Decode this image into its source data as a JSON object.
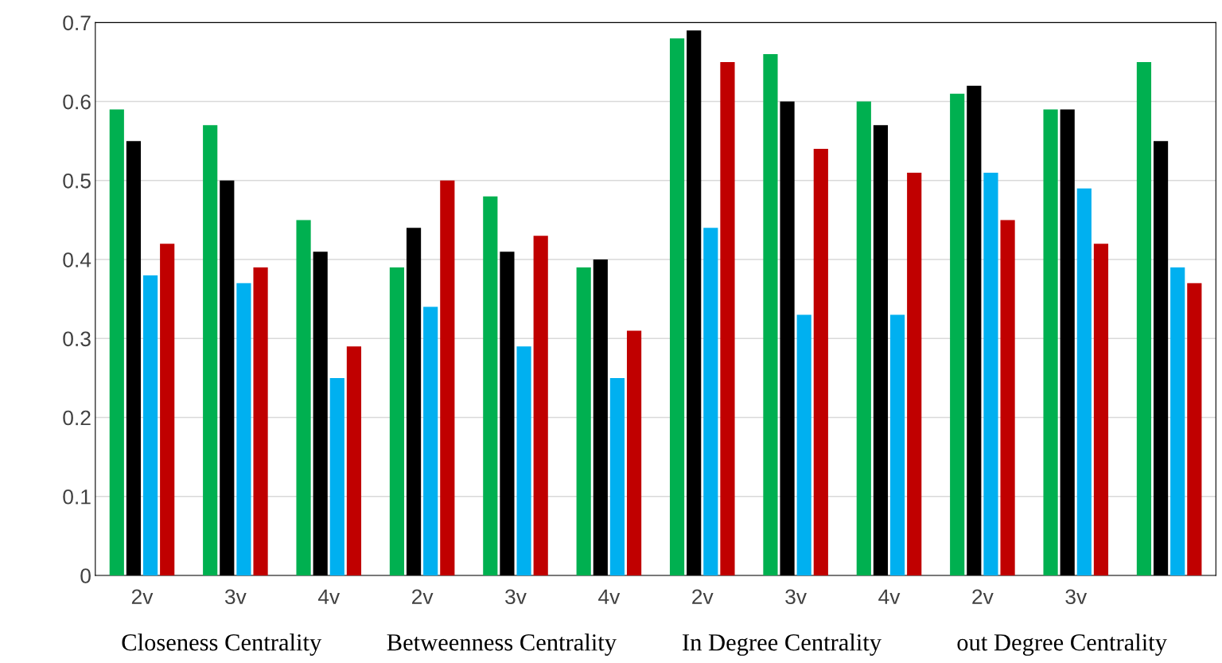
{
  "chart_data": {
    "type": "bar",
    "categories": [
      "2v",
      "3v",
      "4v",
      "2v",
      "3v",
      "4v",
      "2v",
      "3v",
      "4v",
      "2v",
      "3v",
      null
    ],
    "series": [
      {
        "color": "#00b050",
        "values": [
          0.59,
          0.57,
          0.45,
          0.39,
          0.48,
          0.39,
          0.68,
          0.66,
          0.6,
          0.61,
          0.59,
          0.65
        ]
      },
      {
        "color": "#000000",
        "values": [
          0.55,
          0.5,
          0.41,
          0.44,
          0.41,
          0.4,
          0.69,
          0.6,
          0.57,
          0.62,
          0.59,
          0.55
        ]
      },
      {
        "color": "#00b0f0",
        "values": [
          0.38,
          0.37,
          0.25,
          0.34,
          0.29,
          0.25,
          0.44,
          0.33,
          0.33,
          0.51,
          0.49,
          0.39
        ]
      },
      {
        "color": "#c00000",
        "values": [
          0.42,
          0.39,
          0.29,
          0.5,
          0.43,
          0.31,
          0.65,
          0.54,
          0.51,
          0.45,
          0.42,
          0.37
        ]
      }
    ],
    "annotations": [
      "Closeness Centrality",
      "Betweenness Centrality",
      "In Degree Centrality",
      "out Degree Centrality"
    ],
    "ylim": [
      0,
      0.7
    ],
    "yticks": [
      0,
      0.1,
      0.2,
      0.3,
      0.4,
      0.5,
      0.6,
      0.7
    ],
    "grid": "y",
    "legend": false
  }
}
